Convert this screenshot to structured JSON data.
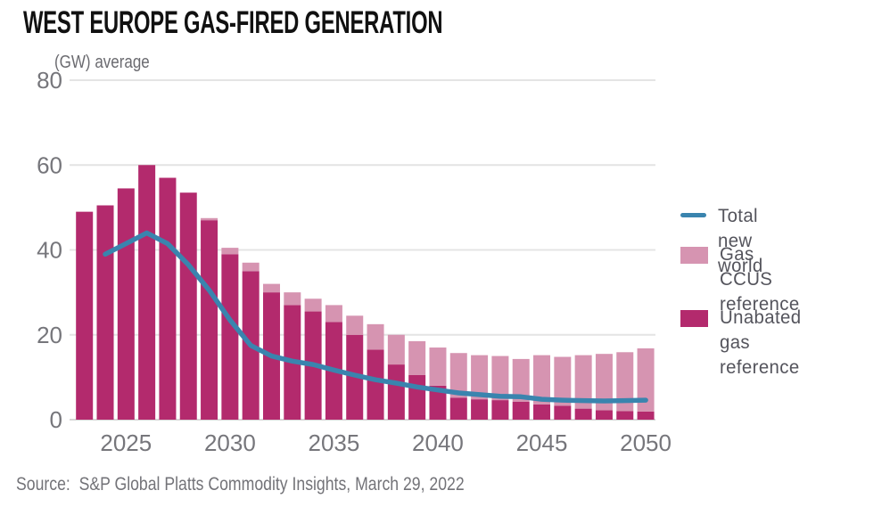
{
  "title": "WEST EUROPE GAS-FIRED GENERATION",
  "subtitle": "(GW) average",
  "source": "Source:  S&P Global Platts Commodity Insights, March 29, 2022",
  "colors": {
    "unabated": "#b32a6d",
    "ccus": "#d694b1",
    "line": "#3a84ae",
    "grid": "#e4e4e4",
    "baseline": "#d6d6d6",
    "axis_text": "#76767b",
    "legend_text": "#54545c"
  },
  "legend": {
    "items": [
      {
        "label": "Total new world",
        "swatch": "line",
        "color_key": "line"
      },
      {
        "label": "Gas CCUS\nreference",
        "swatch": "box",
        "color_key": "ccus"
      },
      {
        "label": "Unabated gas\nreference",
        "swatch": "box",
        "color_key": "unabated"
      }
    ]
  },
  "chart_data": {
    "type": "bar",
    "subtype": "stacked bars with overlaid line",
    "title": "WEST EUROPE GAS-FIRED GENERATION",
    "unit_label": "(GW) average",
    "x": [
      2023,
      2024,
      2025,
      2026,
      2027,
      2028,
      2029,
      2030,
      2031,
      2032,
      2033,
      2034,
      2035,
      2036,
      2037,
      2038,
      2039,
      2040,
      2041,
      2042,
      2043,
      2044,
      2045,
      2046,
      2047,
      2048,
      2049,
      2050
    ],
    "series": [
      {
        "name": "Unabated gas reference",
        "type": "bar",
        "values": [
          49,
          50.5,
          54.5,
          60,
          57,
          53.5,
          47,
          39,
          35,
          30,
          27,
          25.5,
          23,
          20,
          16.5,
          13,
          10.5,
          8,
          5.2,
          4.8,
          4.6,
          4.2,
          3.6,
          3.3,
          2.6,
          2.2,
          2.0,
          1.9
        ]
      },
      {
        "name": "Gas CCUS reference",
        "type": "bar",
        "values": [
          0,
          0,
          0,
          0,
          0,
          0,
          0.5,
          1.5,
          2,
          2,
          3,
          3,
          4,
          4.5,
          6,
          7,
          8,
          9,
          10.5,
          10.4,
          10.4,
          10.1,
          11.6,
          11.5,
          12.6,
          13.3,
          13.9,
          14.9
        ]
      },
      {
        "name": "Total new world",
        "type": "line",
        "values": [
          null,
          39,
          41.5,
          44,
          41.5,
          36.5,
          30.5,
          23.5,
          17.5,
          15,
          13.8,
          13,
          11.7,
          10.5,
          9.4,
          8.6,
          7.7,
          7,
          6.3,
          5.9,
          5.5,
          5.4,
          4.8,
          4.6,
          4.5,
          4.4,
          4.5,
          4.6
        ]
      }
    ],
    "ylim": [
      0,
      80
    ],
    "yticks": [
      0,
      20,
      40,
      60,
      80
    ],
    "xticks": [
      2025,
      2030,
      2035,
      2040,
      2045,
      2050
    ],
    "grid": "horizontal",
    "legend_position": "right"
  }
}
